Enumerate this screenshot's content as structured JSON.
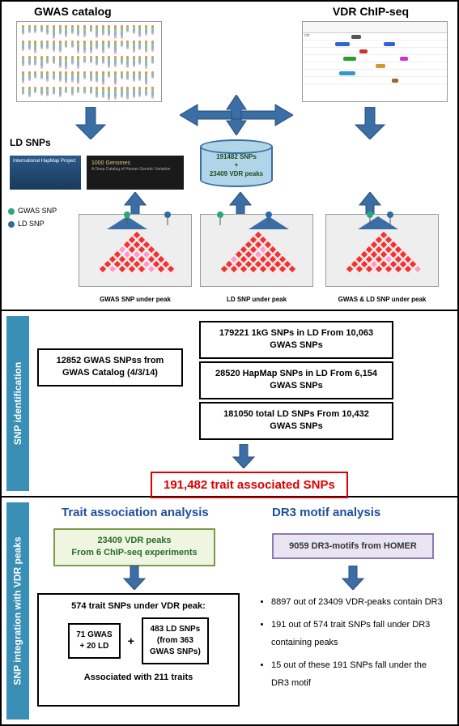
{
  "colors": {
    "arrow": "#3a6ea5",
    "arrow_stroke": "#2a4e7a",
    "gwas_pin": "#2aa876",
    "ld_pin": "#2a6ea5",
    "red_box": "#d00000",
    "side_tab": "#3a8fb7",
    "section_title": "#1f4e9c",
    "green_box_bg": "#eef6e2",
    "green_box_border": "#7a9a4a",
    "purple_box_bg": "#e8e4f2",
    "purple_box_border": "#8a7ab5",
    "ld_square": "#e33333"
  },
  "top": {
    "title_left": "GWAS catalog",
    "title_right": "VDR ChIP-seq",
    "ld_label": "LD SNPs",
    "hapmap": "International HapMap Project",
    "kg_title": "1000 Genomes",
    "kg_sub": "A Deep Catalog of Human Genetic Variation",
    "cylinder_line1": "191482 SNPs",
    "cylinder_plus": "+",
    "cylinder_line2": "23409 VDR peaks",
    "legend_gwas": "GWAS SNP",
    "legend_ld": "LD SNP",
    "plot1_caption": "GWAS SNP under peak",
    "plot2_caption": "LD SNP under peak",
    "plot3_caption": "GWAS & LD SNP under peak"
  },
  "mid": {
    "side_label": "SNP identification",
    "box_gwas": "12852 GWAS SNPss from GWAS Catalog (4/3/14)",
    "box_1kg": "179221 1kG SNPs in LD From 10,063 GWAS SNPs",
    "box_hapmap": "28520 HapMap SNPs in LD From 6,154 GWAS SNPs",
    "box_total": "181050 total LD SNPs From 10,432 GWAS SNPs",
    "result": "191,482 trait associated SNPs"
  },
  "bot": {
    "side_label": "SNP integration with VDR peaks",
    "title_left": "Trait association analysis",
    "title_right": "DR3 motif analysis",
    "green_line1": "23409 VDR peaks",
    "green_line2": "From 6 ChIP-seq experiments",
    "purple": "9059 DR3-motifs from HOMER",
    "outline_title": "574 trait SNPs under VDR peak:",
    "inner1_l1": "71 GWAS",
    "inner1_l2": "+ 20 LD",
    "inner2_l1": "483 LD SNPs",
    "inner2_l2": "(from 363",
    "inner2_l3": "GWAS SNPs)",
    "outline_footer": "Associated with 211 traits",
    "bullets": [
      "8897 out of  23409 VDR-peaks contain DR3",
      "191 out of  574 trait SNPs fall under DR3 containing peaks",
      "15 out of these 191 SNPs fall under the DR3 motif"
    ]
  }
}
